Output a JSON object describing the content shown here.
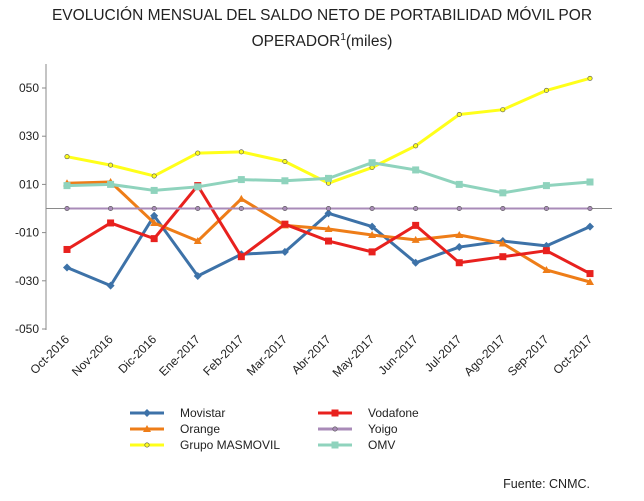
{
  "chart_data": {
    "type": "line",
    "title_line1": "EVOLUCIÓN MENSUAL DEL SALDO NETO DE PORTABILIDAD MÓVIL POR",
    "title_line2_main": "OPERADOR",
    "title_sup": "1",
    "title_line2_rest": "(miles)",
    "categories": [
      "Oct-2016",
      "Nov-2016",
      "Dic-2016",
      "Ene-2017",
      "Feb-2017",
      "Mar-2017",
      "Abr-2017",
      "May-2017",
      "Jun-2017",
      "Jul-2017",
      "Ago-2017",
      "Sep-2017",
      "Oct-2017"
    ],
    "y_ticks": [
      50,
      30,
      10,
      -10,
      -30,
      -50
    ],
    "y_tick_labels": [
      "050",
      "030",
      "010",
      "-010",
      "-030",
      "-050"
    ],
    "ylim": [
      -50,
      60
    ],
    "grid": false,
    "legend_position": "bottom",
    "series": [
      {
        "name": "Movistar",
        "color": "#3d72a8",
        "marker": "diamond",
        "values": [
          -24.5,
          -32,
          -3,
          -28,
          -19,
          -18,
          -2,
          -7.5,
          -22.5,
          -16,
          -13.5,
          -15.5,
          -7.5
        ]
      },
      {
        "name": "Orange",
        "color": "#ee7d18",
        "marker": "triangle",
        "values": [
          10.5,
          11,
          -6,
          -13.5,
          4,
          -7,
          -8.5,
          -11,
          -13,
          -11,
          -14.5,
          -25.5,
          -30.5
        ]
      },
      {
        "name": "Grupo MASMOVIL",
        "color": "#ffff1a",
        "marker": "circle",
        "values": [
          21.5,
          18,
          13.5,
          23,
          23.5,
          19.5,
          10.5,
          17,
          26,
          39,
          41,
          49,
          54
        ]
      },
      {
        "name": "Vodafone",
        "color": "#e8211e",
        "marker": "square",
        "values": [
          -17,
          -6,
          -12.5,
          9.5,
          -20,
          -6.5,
          -13.5,
          -18,
          -7,
          -22.5,
          -20,
          -17.5,
          -27
        ]
      },
      {
        "name": "Yoigo",
        "color": "#a98bb8",
        "marker": "circle",
        "values": [
          0,
          0,
          0,
          0,
          0,
          0,
          0,
          0,
          0,
          0,
          0,
          0,
          0
        ]
      },
      {
        "name": "OMV",
        "color": "#8fd3bd",
        "marker": "square",
        "values": [
          9.5,
          10,
          7.5,
          9,
          12,
          11.5,
          12.5,
          19,
          16,
          10,
          6.5,
          9.5,
          11
        ]
      }
    ],
    "source": "Fuente: CNMC."
  }
}
